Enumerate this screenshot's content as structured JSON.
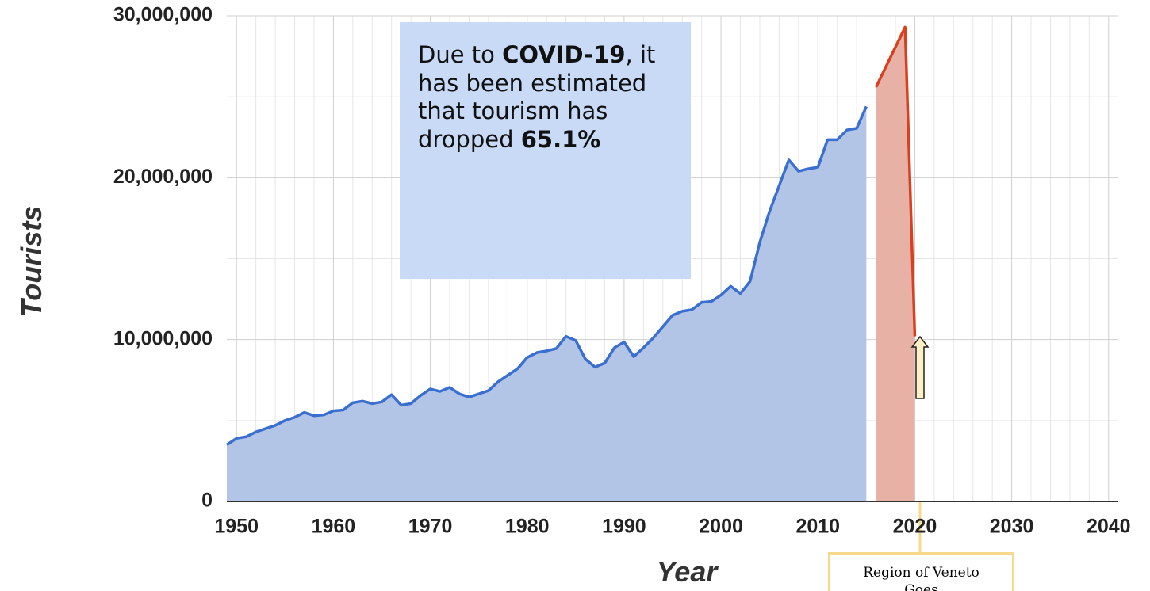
{
  "chart_data": {
    "type": "area",
    "y_label": "Tourists",
    "x_label": "Year",
    "annotation": [
      "Due to ",
      "COVID-19",
      ", it has been estimated that tourism has dropped ",
      "65.1%"
    ],
    "note": "Region of Veneto Goes",
    "xlim": [
      1949,
      2041
    ],
    "xticks": [
      1950,
      1960,
      1970,
      1980,
      1990,
      2000,
      2010,
      2020,
      2030,
      2040
    ],
    "ylim": [
      0,
      30000000
    ],
    "yticks": [
      0,
      {
        "value": 10000000,
        "label": "10,000,000"
      },
      {
        "value": 20000000,
        "label": "20,000,000"
      },
      {
        "value": 30000000,
        "label": "30,000,000"
      }
    ],
    "grid": true,
    "series": [
      {
        "color": "#3a6fd0",
        "fill": "#b3c5e6",
        "x": [
          1949,
          1950,
          1951,
          1952,
          1953,
          1954,
          1955,
          1956,
          1957,
          1958,
          1959,
          1960,
          1961,
          1962,
          1963,
          1964,
          1965,
          1966,
          1967,
          1968,
          1969,
          1970,
          1971,
          1972,
          1973,
          1974,
          1975,
          1976,
          1977,
          1978,
          1979,
          1980,
          1981,
          1982,
          1983,
          1984,
          1985,
          1986,
          1987,
          1988,
          1989,
          1990,
          1991,
          1992,
          1993,
          1994,
          1995,
          1996,
          1997,
          1998,
          1999,
          2000,
          2001,
          2002,
          2003,
          2004,
          2005,
          2006,
          2007,
          2008,
          2009,
          2010,
          2011,
          2012,
          2013,
          2014,
          2015
        ],
        "values": [
          3500000,
          3900000,
          4000000,
          4300000,
          4500000,
          4700000,
          5000000,
          5200000,
          5500000,
          5300000,
          5350000,
          5600000,
          5650000,
          6100000,
          6200000,
          6050000,
          6150000,
          6600000,
          5950000,
          6050000,
          6550000,
          6950000,
          6800000,
          7050000,
          6650000,
          6450000,
          6650000,
          6850000,
          7400000,
          7800000,
          8200000,
          8900000,
          9200000,
          9300000,
          9450000,
          10200000,
          9950000,
          8800000,
          8300000,
          8550000,
          9500000,
          9850000,
          8950000,
          9500000,
          10100000,
          10800000,
          11500000,
          11750000,
          11850000,
          12300000,
          12350000,
          12750000,
          13300000,
          12850000,
          13600000,
          16000000,
          17900000,
          19500000,
          21100000,
          20400000,
          20550000,
          20650000,
          22350000,
          22350000,
          22950000,
          23050000,
          24400000
        ]
      },
      {
        "color": "#d9401f",
        "fill": "#e8b1a5",
        "x": [
          2016,
          2019,
          2020
        ],
        "values": [
          25600000,
          29300000,
          10200000
        ]
      }
    ]
  }
}
